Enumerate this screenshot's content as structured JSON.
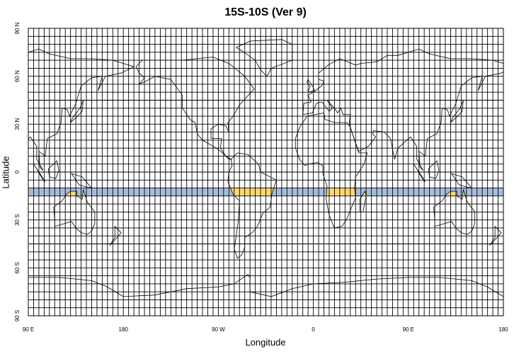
{
  "title": "15S-10S (Ver 9)",
  "xlabel": "Longitude",
  "ylabel": "Latitude",
  "x_ticks": [
    {
      "lon": 90,
      "label": "90 E"
    },
    {
      "lon": 180,
      "label": "180"
    },
    {
      "lon": 270,
      "label": "90 W"
    },
    {
      "lon": 360,
      "label": "0"
    },
    {
      "lon": 450,
      "label": "90 E"
    },
    {
      "lon": 540,
      "label": "180"
    }
  ],
  "y_ticks": [
    {
      "lat": 90,
      "label": "90 N"
    },
    {
      "lat": 60,
      "label": "60 N"
    },
    {
      "lat": 30,
      "label": "30 N"
    },
    {
      "lat": 0,
      "label": "0"
    },
    {
      "lat": -30,
      "label": "30 S"
    },
    {
      "lat": -60,
      "label": "60 S"
    },
    {
      "lat": -90,
      "label": "90 S"
    }
  ],
  "map": {
    "lon_range": [
      90,
      540
    ],
    "lat_range": [
      -90,
      90
    ],
    "grid_spacing_deg": 5,
    "highlight_band": {
      "lat_min": -15,
      "lat_max": -10
    },
    "colors": {
      "ocean_band": "#a6bddb",
      "land_band": "#fdd872",
      "grid": "#000000",
      "coast": "#000000"
    }
  }
}
